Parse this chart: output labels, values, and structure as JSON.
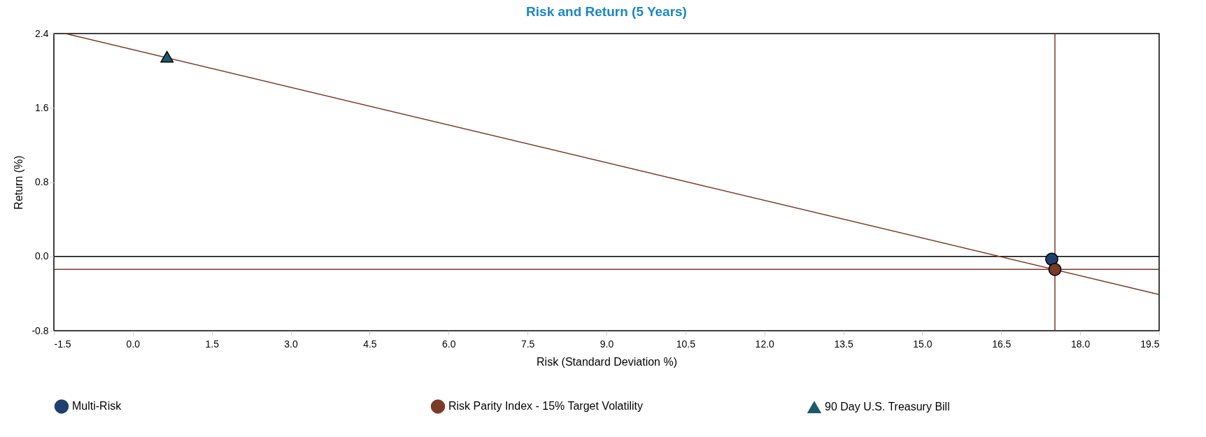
{
  "chart_data": {
    "type": "scatter",
    "title": "Risk and Return (5 Years)",
    "xlabel": "Risk (Standard Deviation %)",
    "ylabel": "Return (%)",
    "xlim": [
      -1.5,
      19.5
    ],
    "xticks": [
      {
        "value": -1.5,
        "label": "-1.5"
      },
      {
        "value": 0,
        "label": "0.0"
      },
      {
        "value": 1.5,
        "label": "1.5"
      },
      {
        "value": 3,
        "label": "3.0"
      },
      {
        "value": 4.5,
        "label": "4.5"
      },
      {
        "value": 6,
        "label": "6.0"
      },
      {
        "value": 7.5,
        "label": "7.5"
      },
      {
        "value": 9,
        "label": "9.0"
      },
      {
        "value": 10.5,
        "label": "10.5"
      },
      {
        "value": 12,
        "label": "12.0"
      },
      {
        "value": 13.5,
        "label": "13.5"
      },
      {
        "value": 15,
        "label": "15.0"
      },
      {
        "value": 16.5,
        "label": "16.5"
      },
      {
        "value": 18,
        "label": "18.0"
      },
      {
        "value": 19.5,
        "label": "19.5"
      }
    ],
    "ylim": [
      -0.8,
      2.4
    ],
    "yticks": [
      {
        "value": -0.8,
        "label": "-0.8"
      },
      {
        "value": 0,
        "label": "0.0"
      },
      {
        "value": 0.8,
        "label": "0.8"
      },
      {
        "value": 1.6,
        "label": "1.6"
      },
      {
        "value": 2.4,
        "label": "2.4"
      }
    ],
    "grid": false,
    "legend": "bottom",
    "series": [
      {
        "name": "Multi-Risk",
        "color": "#1f3f6e",
        "marker": "circle",
        "x": [
          17.46
        ],
        "values": [
          -0.03
        ]
      },
      {
        "name": "Risk Parity Index - 15% Target Volatility",
        "color": "#7b3a26",
        "marker": "circle",
        "x": [
          17.52
        ],
        "values": [
          -0.14
        ]
      },
      {
        "name": "90 Day U.S. Treasury Bill",
        "color": "#1a5a6e",
        "marker": "triangle",
        "x": [
          0.65
        ],
        "values": [
          2.15
        ]
      },
      {
        "type": "line",
        "color": "#7b3a26",
        "x": [
          -1.28,
          19.5
        ],
        "values": [
          2.4,
          -0.41
        ]
      }
    ],
    "ref_lines": [
      {
        "axis": "y",
        "value": 0,
        "color": "#000000"
      },
      {
        "axis": "y",
        "value": -0.14,
        "color": "#7b3a26"
      },
      {
        "axis": "x",
        "value": 17.52,
        "color": "#7b3a26"
      }
    ]
  }
}
